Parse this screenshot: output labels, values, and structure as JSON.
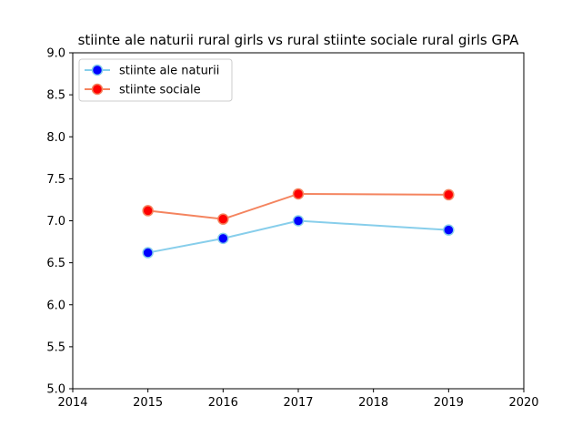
{
  "chart_data": {
    "type": "line",
    "title": "stiinte ale naturii rural girls vs rural stiinte sociale rural girls GPA",
    "xlabel": "",
    "ylabel": "",
    "xlim": [
      2014,
      2020
    ],
    "ylim": [
      5.0,
      9.0
    ],
    "x_ticks": [
      "2014",
      "2015",
      "2016",
      "2017",
      "2018",
      "2019",
      "2020"
    ],
    "y_ticks": [
      "5.0",
      "5.5",
      "6.0",
      "6.5",
      "7.0",
      "7.5",
      "8.0",
      "8.5",
      "9.0"
    ],
    "grid": false,
    "legend_position": "top-left",
    "x": [
      2015,
      2016,
      2017,
      2019
    ],
    "series": [
      {
        "name": "stiinte ale naturii",
        "values": [
          6.62,
          6.79,
          7.0,
          6.89
        ],
        "line_color": "#87ceeb",
        "marker_color": "#0000ff"
      },
      {
        "name": "stiinte sociale",
        "values": [
          7.12,
          7.02,
          7.32,
          7.31
        ],
        "line_color": "#f4845f",
        "marker_color": "#ff0000"
      }
    ]
  }
}
